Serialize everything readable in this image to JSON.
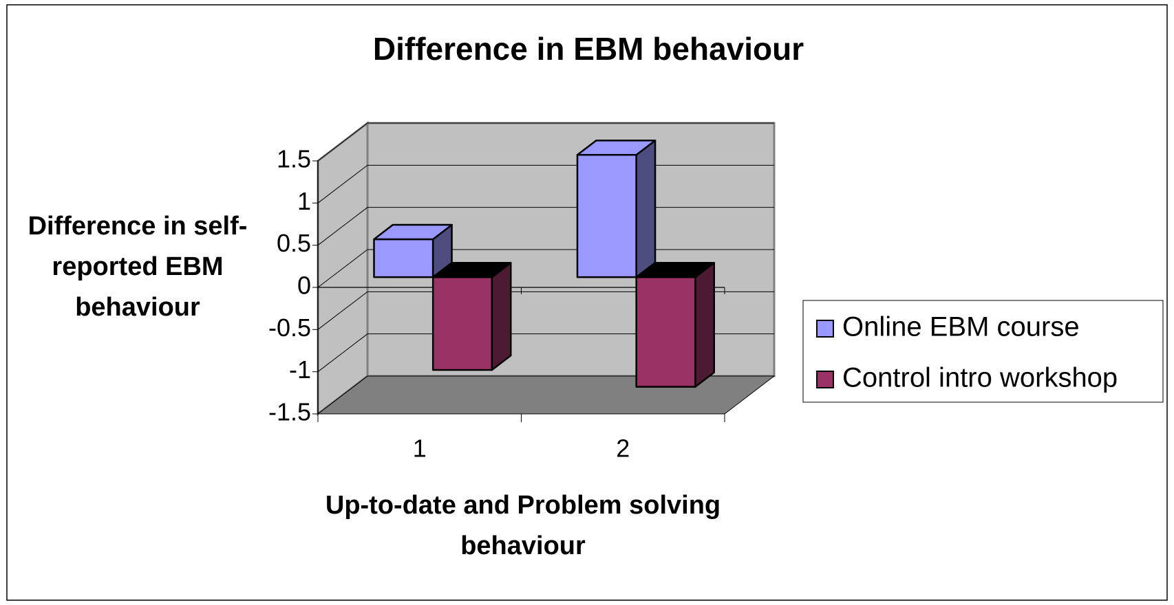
{
  "chart_data": {
    "type": "bar3d",
    "title": "Difference in EBM behaviour",
    "xlabel": "Up-to-date and Problem solving behaviour",
    "ylabel": "Difference in self-reported EBM behaviour",
    "categories": [
      "1",
      "2"
    ],
    "series": [
      {
        "name": "Online EBM course",
        "color": "#9999ff",
        "values": [
          0.45,
          1.45
        ]
      },
      {
        "name": "Control intro workshop",
        "color": "#993366",
        "values": [
          -1.1,
          -1.3
        ]
      }
    ],
    "ylim": [
      -1.5,
      1.5
    ],
    "yticks": [
      -1.5,
      -1,
      -0.5,
      0,
      0.5,
      1,
      1.5
    ],
    "grid": true,
    "legend": "right"
  }
}
